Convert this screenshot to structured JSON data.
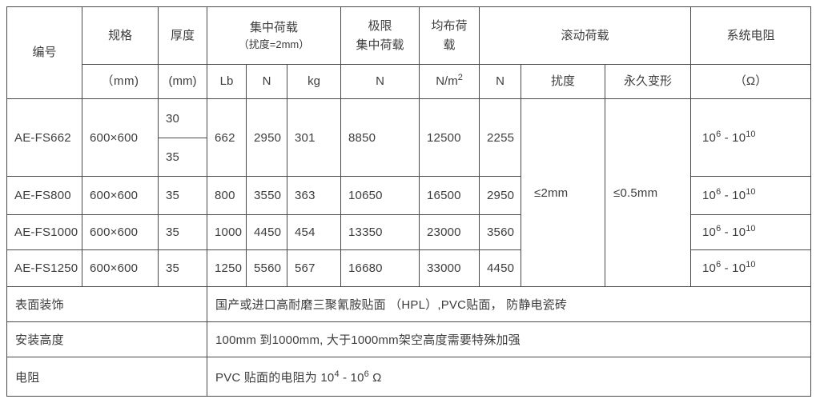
{
  "colors": {
    "border": "#4a4a4a",
    "text": "#3d3d3d",
    "background": "#ffffff"
  },
  "table": {
    "header": {
      "id_label": "编号",
      "spec_label": "规格",
      "spec_unit": "（mm)",
      "thickness_label": "厚度",
      "thickness_unit": "(mm)",
      "concentrated_label": "集中荷载",
      "concentrated_note": "（扰度=2mm）",
      "concentrated_sub": [
        "Lb",
        "N",
        "kg"
      ],
      "ultimate_line1": "极限",
      "ultimate_line2": "集中荷载",
      "ultimate_unit": "N",
      "uniform_label": "均布荷载",
      "uniform_unit": "N/m^2",
      "rolling_label": "滚动荷载",
      "rolling_sub_n": "N",
      "rolling_sub_deflection": "扰度",
      "rolling_sub_permanent": "永久变形",
      "resistance_label": "系统电阻",
      "resistance_unit": "（Ω）"
    },
    "rows": [
      {
        "id": "AE-FS662",
        "spec": "600×600",
        "thickness_top": "30",
        "thickness_bottom": "35",
        "lb": "662",
        "n": "2950",
        "kg": "301",
        "ultimate_n": "8850",
        "uniform_nm2": "12500",
        "uniform_n": "2255",
        "system_resistance": "10^6 - 10^10"
      },
      {
        "id": "AE-FS800",
        "spec": "600×600",
        "thickness": "35",
        "lb": "800",
        "n": "3550",
        "kg": "363",
        "ultimate_n": "10650",
        "uniform_nm2": "16500",
        "uniform_n": "2950",
        "system_resistance": "10^6 - 10^10"
      },
      {
        "id": "AE-FS1000",
        "spec": "600×600",
        "thickness": "35",
        "lb": "1000",
        "n": "4450",
        "kg": "454",
        "ultimate_n": "13350",
        "uniform_nm2": "23000",
        "uniform_n": "3560",
        "system_resistance": "10^6 - 10^10"
      },
      {
        "id": "AE-FS1250",
        "spec": "600×600",
        "thickness": "35",
        "lb": "1250",
        "n": "5560",
        "kg": "567",
        "ultimate_n": "16680",
        "uniform_nm2": "33000",
        "uniform_n": "4450",
        "system_resistance": "10^6 - 10^10"
      }
    ],
    "rolling_values": {
      "deflection": "≤2mm",
      "permanent": "≤0.5mm"
    },
    "footer_rows": [
      {
        "label": "表面装饰",
        "content": "国产或进口高耐磨三聚氰胺贴面 （HPL）,PVC贴面， 防静电瓷砖"
      },
      {
        "label": "安装高度",
        "content": "100mm 到1000mm, 大于1000mm架空高度需要特殊加强"
      },
      {
        "label": "电阻",
        "content": "PVC 贴面的电阻为 10^4 - 10^6 Ω"
      }
    ]
  }
}
